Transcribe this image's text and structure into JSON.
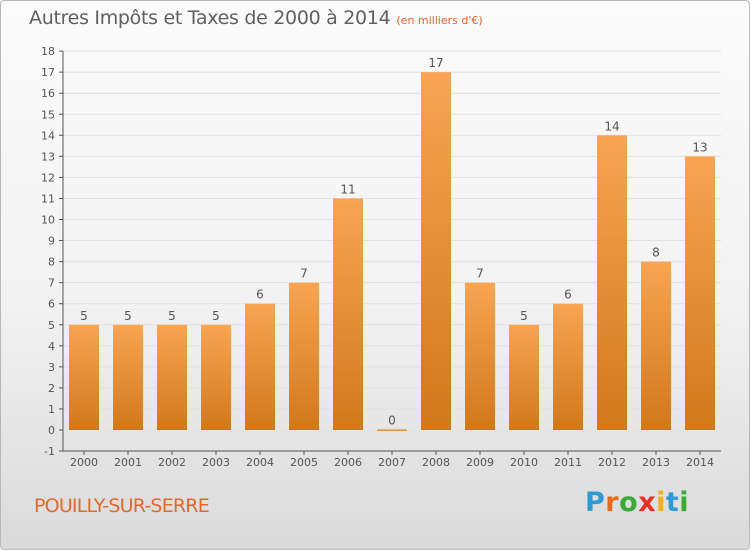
{
  "title": "Autres Impôts et Taxes de 2000 à 2014",
  "subtitle": "(en milliers d'€)",
  "location": "POUILLY-SUR-SERRE",
  "brand": {
    "name": "Proxiti",
    "letters": [
      "P",
      "r",
      "o",
      "x",
      "i",
      "t",
      "i"
    ],
    "colors": [
      "#2e9bd6",
      "#e86a1f",
      "#3aa935",
      "#e5302a",
      "#f2b21d",
      "#2e9bd6",
      "#3aa935"
    ]
  },
  "colors": {
    "bar_light": "#f8a452",
    "bar_dark": "#d2781c",
    "axis": "#555555",
    "grid": "#e1e1e1",
    "label": "#555555"
  },
  "chart_data": {
    "type": "bar",
    "categories": [
      "2000",
      "2001",
      "2002",
      "2003",
      "2004",
      "2005",
      "2006",
      "2007",
      "2008",
      "2009",
      "2010",
      "2011",
      "2012",
      "2013",
      "2014"
    ],
    "values": [
      5,
      5,
      5,
      5,
      6,
      7,
      11,
      0,
      17,
      7,
      5,
      6,
      14,
      8,
      13
    ],
    "data_labels": [
      "5",
      "5",
      "5",
      "5",
      "6",
      "7",
      "11",
      "0",
      "17",
      "7",
      "5",
      "6",
      "14",
      "8",
      "13"
    ],
    "yticks": [
      "-1",
      "0",
      "1",
      "2",
      "3",
      "4",
      "5",
      "6",
      "7",
      "8",
      "9",
      "10",
      "11",
      "12",
      "13",
      "14",
      "15",
      "16",
      "17",
      "18"
    ],
    "ylim": [
      -1,
      18
    ],
    "grid": true
  }
}
